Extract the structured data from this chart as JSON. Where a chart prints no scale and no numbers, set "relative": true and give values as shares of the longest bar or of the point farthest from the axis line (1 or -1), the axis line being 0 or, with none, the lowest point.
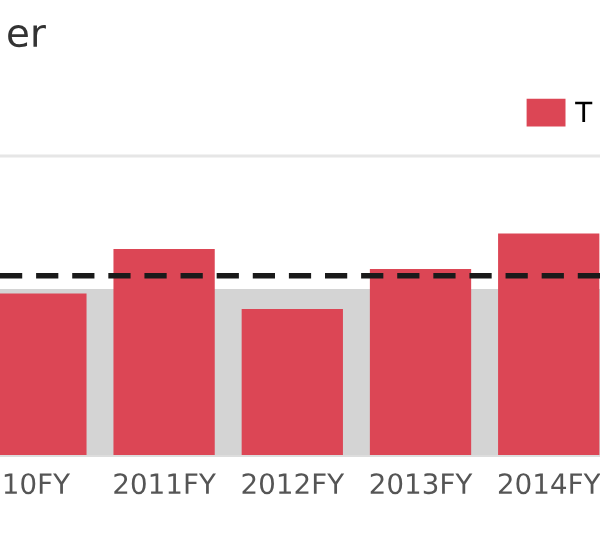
{
  "chart_data": {
    "type": "bar",
    "title": "er",
    "relative": true,
    "legend": "top right",
    "grid": false,
    "categories": [
      "10FY",
      "2011FY",
      "2012FY",
      "2013FY",
      "2014FY"
    ],
    "series": [
      {
        "name": "T",
        "color": "#dc4655",
        "values": [
          0.73,
          0.93,
          0.66,
          0.84,
          1
        ]
      }
    ],
    "ref_lines": [
      {
        "axis": "y",
        "value": 0.81,
        "color": "#1a1a1a",
        "line_style": "dashed"
      }
    ],
    "bands": [
      {
        "axis": "y",
        "from": 0,
        "to": 0.75,
        "color": "#d4d4d4"
      }
    ]
  }
}
